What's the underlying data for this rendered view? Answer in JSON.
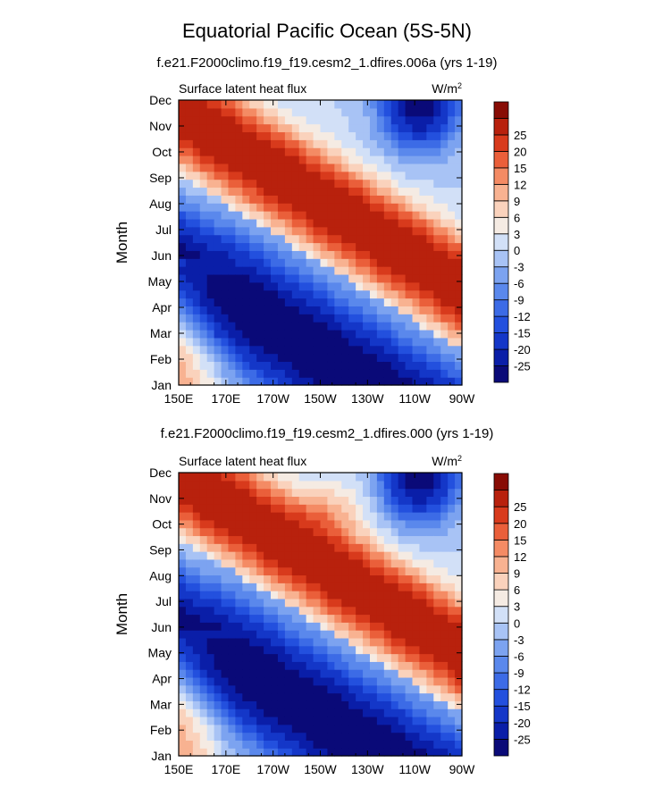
{
  "figure": {
    "title": "Equatorial Pacific Ocean (5S-5N)"
  },
  "chart_data": [
    {
      "type": "heatmap",
      "panel_title": "f.e21.F2000climo.f19_f19.cesm2_1.dfires.006a (yrs 1-19)",
      "left_label": "Surface latent heat flux",
      "right_label_base": "W/m",
      "right_label_exp": "2",
      "ylabel": "Month",
      "x_ticks": [
        "150E",
        "170E",
        "170W",
        "150W",
        "130W",
        "110W",
        "90W"
      ],
      "y_ticks": [
        "Jan",
        "Feb",
        "Mar",
        "Apr",
        "May",
        "Jun",
        "Jul",
        "Aug",
        "Sep",
        "Oct",
        "Nov",
        "Dec"
      ],
      "x_range_deg_east": [
        150,
        270
      ],
      "colorbar": {
        "labels": [
          "-25",
          "-20",
          "-15",
          "-12",
          "-9",
          "-6",
          "-3",
          "0",
          "3",
          "6",
          "9",
          "12",
          "15",
          "20",
          "25"
        ],
        "colors": [
          "#0a0a78",
          "#0a1ea8",
          "#1437c8",
          "#2350de",
          "#3c6be6",
          "#5a88ec",
          "#7ca3f0",
          "#a8c3f5",
          "#d2e0f7",
          "#f5ebe3",
          "#fad2bc",
          "#f8b291",
          "#f48b64",
          "#ea5f3a",
          "#d83a1c",
          "#b8210d",
          "#880c05"
        ]
      },
      "pattern": {
        "shift": 0.0,
        "blob_x": -1,
        "blob_y": -1,
        "blob_amp": 0
      }
    },
    {
      "type": "heatmap",
      "panel_title": "f.e21.F2000climo.f19_f19.cesm2_1.dfires.000 (yrs 1-19)",
      "left_label": "Surface latent heat flux",
      "right_label_base": "W/m",
      "right_label_exp": "2",
      "ylabel": "Month",
      "x_ticks": [
        "150E",
        "170E",
        "170W",
        "150W",
        "130W",
        "110W",
        "90W"
      ],
      "y_ticks": [
        "Jan",
        "Feb",
        "Mar",
        "Apr",
        "May",
        "Jun",
        "Jul",
        "Aug",
        "Sep",
        "Oct",
        "Nov",
        "Dec"
      ],
      "x_range_deg_east": [
        150,
        270
      ],
      "colorbar": {
        "labels": [
          "-25",
          "-20",
          "-15",
          "-12",
          "-9",
          "-6",
          "-3",
          "0",
          "3",
          "6",
          "9",
          "12",
          "15",
          "20",
          "25"
        ],
        "colors": [
          "#0a0a78",
          "#0a1ea8",
          "#1437c8",
          "#2350de",
          "#3c6be6",
          "#5a88ec",
          "#7ca3f0",
          "#a8c3f5",
          "#d2e0f7",
          "#f5ebe3",
          "#fad2bc",
          "#f8b291",
          "#f48b64",
          "#ea5f3a",
          "#d83a1c",
          "#b8210d",
          "#880c05"
        ]
      },
      "pattern": {
        "shift": 0.03,
        "blob_x": 0.55,
        "blob_y": 0.88,
        "blob_amp": 6
      }
    }
  ]
}
